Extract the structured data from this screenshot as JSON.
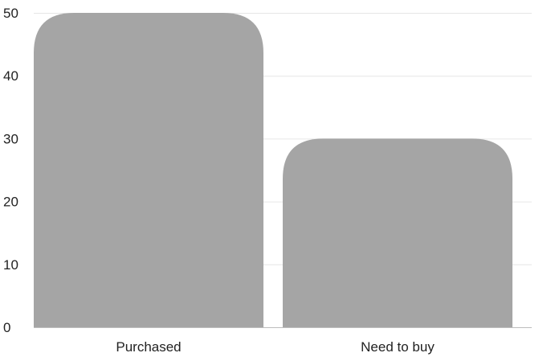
{
  "chart_data": {
    "type": "bar",
    "categories": [
      "Purchased",
      "Need to buy"
    ],
    "values": [
      50,
      30
    ],
    "title": "",
    "xlabel": "",
    "ylabel": "",
    "ylim": [
      0,
      50
    ],
    "yticks": [
      0,
      10,
      20,
      30,
      40,
      50
    ],
    "grid": true,
    "bar_color": "#a5a5a5",
    "grid_color": "#e6e6e6",
    "legend": "none"
  }
}
